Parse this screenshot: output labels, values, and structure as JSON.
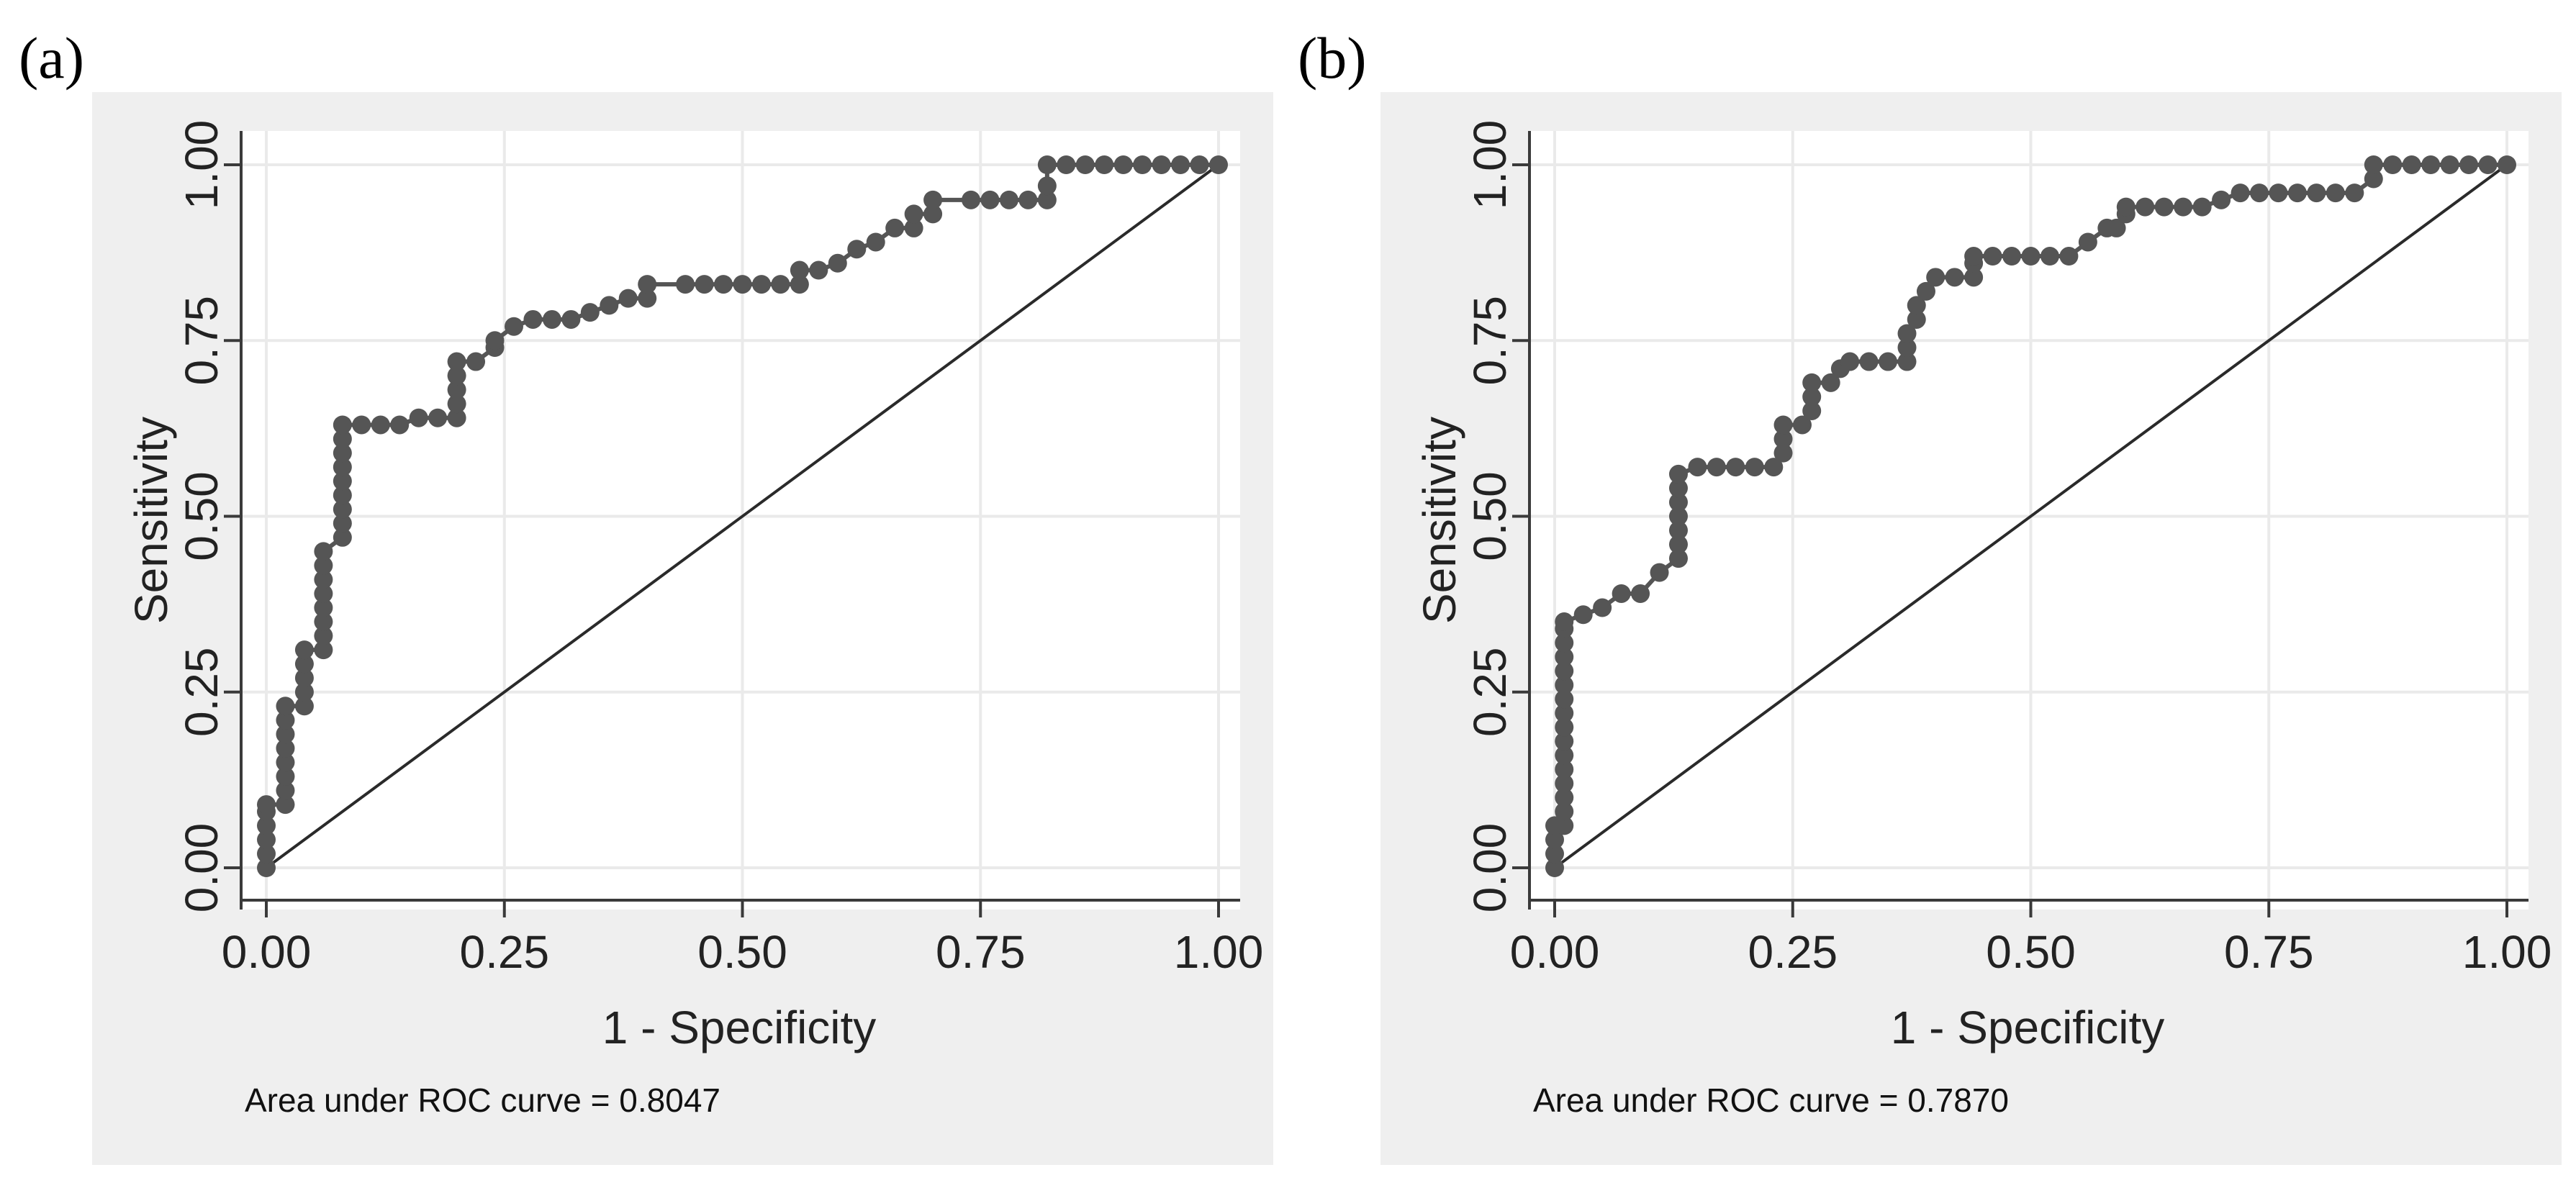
{
  "colors": {
    "outer_bg": "#efefef",
    "plot_bg": "#ffffff",
    "grid": "#eaeaea",
    "axis": "#3a3a3a",
    "curve": "#555555",
    "diagonal": "#2a2a2a"
  },
  "chart_data": [
    {
      "type": "scatter",
      "panel_label": "(a)",
      "xlabel": "1 - Specificity",
      "ylabel": "Sensitivity",
      "xlim": [
        0,
        1
      ],
      "ylim": [
        0,
        1
      ],
      "x_ticks": [
        "0.00",
        "0.25",
        "0.50",
        "0.75",
        "1.00"
      ],
      "y_ticks": [
        "0.00",
        "0.25",
        "0.50",
        "0.75",
        "1.00"
      ],
      "grid": true,
      "reference_line": [
        [
          0,
          0
        ],
        [
          1,
          1
        ]
      ],
      "note": "Area under ROC curve = 0.8047",
      "series": [
        {
          "name": "ROC curve",
          "points": [
            [
              0,
              0
            ],
            [
              0,
              0.02
            ],
            [
              0,
              0.04
            ],
            [
              0,
              0.06
            ],
            [
              0,
              0.08
            ],
            [
              0,
              0.09
            ],
            [
              0.02,
              0.09
            ],
            [
              0.02,
              0.11
            ],
            [
              0.02,
              0.13
            ],
            [
              0.02,
              0.15
            ],
            [
              0.02,
              0.17
            ],
            [
              0.02,
              0.19
            ],
            [
              0.02,
              0.21
            ],
            [
              0.02,
              0.23
            ],
            [
              0.04,
              0.23
            ],
            [
              0.04,
              0.25
            ],
            [
              0.04,
              0.27
            ],
            [
              0.04,
              0.29
            ],
            [
              0.04,
              0.31
            ],
            [
              0.06,
              0.31
            ],
            [
              0.06,
              0.33
            ],
            [
              0.06,
              0.35
            ],
            [
              0.06,
              0.37
            ],
            [
              0.06,
              0.39
            ],
            [
              0.06,
              0.41
            ],
            [
              0.06,
              0.43
            ],
            [
              0.06,
              0.45
            ],
            [
              0.08,
              0.47
            ],
            [
              0.08,
              0.49
            ],
            [
              0.08,
              0.51
            ],
            [
              0.08,
              0.53
            ],
            [
              0.08,
              0.55
            ],
            [
              0.08,
              0.57
            ],
            [
              0.08,
              0.59
            ],
            [
              0.08,
              0.61
            ],
            [
              0.08,
              0.63
            ],
            [
              0.1,
              0.63
            ],
            [
              0.12,
              0.63
            ],
            [
              0.14,
              0.63
            ],
            [
              0.16,
              0.64
            ],
            [
              0.18,
              0.64
            ],
            [
              0.2,
              0.64
            ],
            [
              0.2,
              0.66
            ],
            [
              0.2,
              0.68
            ],
            [
              0.2,
              0.7
            ],
            [
              0.2,
              0.72
            ],
            [
              0.22,
              0.72
            ],
            [
              0.24,
              0.74
            ],
            [
              0.24,
              0.75
            ],
            [
              0.26,
              0.77
            ],
            [
              0.28,
              0.78
            ],
            [
              0.3,
              0.78
            ],
            [
              0.32,
              0.78
            ],
            [
              0.34,
              0.79
            ],
            [
              0.36,
              0.8
            ],
            [
              0.38,
              0.81
            ],
            [
              0.4,
              0.81
            ],
            [
              0.4,
              0.83
            ],
            [
              0.44,
              0.83
            ],
            [
              0.46,
              0.83
            ],
            [
              0.48,
              0.83
            ],
            [
              0.5,
              0.83
            ],
            [
              0.52,
              0.83
            ],
            [
              0.54,
              0.83
            ],
            [
              0.56,
              0.83
            ],
            [
              0.56,
              0.85
            ],
            [
              0.58,
              0.85
            ],
            [
              0.6,
              0.86
            ],
            [
              0.62,
              0.88
            ],
            [
              0.64,
              0.89
            ],
            [
              0.66,
              0.91
            ],
            [
              0.68,
              0.91
            ],
            [
              0.68,
              0.93
            ],
            [
              0.7,
              0.93
            ],
            [
              0.7,
              0.95
            ],
            [
              0.74,
              0.95
            ],
            [
              0.76,
              0.95
            ],
            [
              0.78,
              0.95
            ],
            [
              0.8,
              0.95
            ],
            [
              0.82,
              0.95
            ],
            [
              0.82,
              0.97
            ],
            [
              0.82,
              1
            ],
            [
              0.84,
              1
            ],
            [
              0.86,
              1
            ],
            [
              0.88,
              1
            ],
            [
              0.9,
              1
            ],
            [
              0.92,
              1
            ],
            [
              0.94,
              1
            ],
            [
              0.96,
              1
            ],
            [
              0.98,
              1
            ],
            [
              1,
              1
            ]
          ]
        }
      ]
    },
    {
      "type": "scatter",
      "panel_label": "(b)",
      "xlabel": "1 - Specificity",
      "ylabel": "Sensitivity",
      "xlim": [
        0,
        1
      ],
      "ylim": [
        0,
        1
      ],
      "x_ticks": [
        "0.00",
        "0.25",
        "0.50",
        "0.75",
        "1.00"
      ],
      "y_ticks": [
        "0.00",
        "0.25",
        "0.50",
        "0.75",
        "1.00"
      ],
      "grid": true,
      "reference_line": [
        [
          0,
          0
        ],
        [
          1,
          1
        ]
      ],
      "note": "Area under ROC curve = 0.7870",
      "series": [
        {
          "name": "ROC curve",
          "points": [
            [
              0,
              0
            ],
            [
              0,
              0.02
            ],
            [
              0,
              0.04
            ],
            [
              0,
              0.06
            ],
            [
              0.01,
              0.06
            ],
            [
              0.01,
              0.08
            ],
            [
              0.01,
              0.1
            ],
            [
              0.01,
              0.12
            ],
            [
              0.01,
              0.14
            ],
            [
              0.01,
              0.16
            ],
            [
              0.01,
              0.18
            ],
            [
              0.01,
              0.2
            ],
            [
              0.01,
              0.22
            ],
            [
              0.01,
              0.24
            ],
            [
              0.01,
              0.26
            ],
            [
              0.01,
              0.28
            ],
            [
              0.01,
              0.3
            ],
            [
              0.01,
              0.32
            ],
            [
              0.01,
              0.34
            ],
            [
              0.01,
              0.35
            ],
            [
              0.03,
              0.36
            ],
            [
              0.05,
              0.37
            ],
            [
              0.07,
              0.39
            ],
            [
              0.09,
              0.39
            ],
            [
              0.11,
              0.42
            ],
            [
              0.13,
              0.44
            ],
            [
              0.13,
              0.46
            ],
            [
              0.13,
              0.48
            ],
            [
              0.13,
              0.5
            ],
            [
              0.13,
              0.52
            ],
            [
              0.13,
              0.54
            ],
            [
              0.13,
              0.56
            ],
            [
              0.15,
              0.57
            ],
            [
              0.17,
              0.57
            ],
            [
              0.19,
              0.57
            ],
            [
              0.21,
              0.57
            ],
            [
              0.23,
              0.57
            ],
            [
              0.24,
              0.59
            ],
            [
              0.24,
              0.61
            ],
            [
              0.24,
              0.63
            ],
            [
              0.26,
              0.63
            ],
            [
              0.27,
              0.65
            ],
            [
              0.27,
              0.67
            ],
            [
              0.27,
              0.69
            ],
            [
              0.29,
              0.69
            ],
            [
              0.3,
              0.71
            ],
            [
              0.31,
              0.72
            ],
            [
              0.33,
              0.72
            ],
            [
              0.35,
              0.72
            ],
            [
              0.37,
              0.72
            ],
            [
              0.37,
              0.74
            ],
            [
              0.37,
              0.76
            ],
            [
              0.38,
              0.78
            ],
            [
              0.38,
              0.8
            ],
            [
              0.39,
              0.82
            ],
            [
              0.4,
              0.84
            ],
            [
              0.42,
              0.84
            ],
            [
              0.44,
              0.84
            ],
            [
              0.44,
              0.86
            ],
            [
              0.44,
              0.87
            ],
            [
              0.46,
              0.87
            ],
            [
              0.48,
              0.87
            ],
            [
              0.5,
              0.87
            ],
            [
              0.52,
              0.87
            ],
            [
              0.54,
              0.87
            ],
            [
              0.56,
              0.89
            ],
            [
              0.58,
              0.91
            ],
            [
              0.59,
              0.91
            ],
            [
              0.6,
              0.93
            ],
            [
              0.6,
              0.94
            ],
            [
              0.62,
              0.94
            ],
            [
              0.64,
              0.94
            ],
            [
              0.66,
              0.94
            ],
            [
              0.68,
              0.94
            ],
            [
              0.7,
              0.95
            ],
            [
              0.72,
              0.96
            ],
            [
              0.74,
              0.96
            ],
            [
              0.76,
              0.96
            ],
            [
              0.78,
              0.96
            ],
            [
              0.8,
              0.96
            ],
            [
              0.82,
              0.96
            ],
            [
              0.84,
              0.96
            ],
            [
              0.86,
              0.98
            ],
            [
              0.86,
              1
            ],
            [
              0.88,
              1
            ],
            [
              0.9,
              1
            ],
            [
              0.92,
              1
            ],
            [
              0.94,
              1
            ],
            [
              0.96,
              1
            ],
            [
              0.98,
              1
            ],
            [
              1,
              1
            ]
          ]
        }
      ]
    }
  ]
}
